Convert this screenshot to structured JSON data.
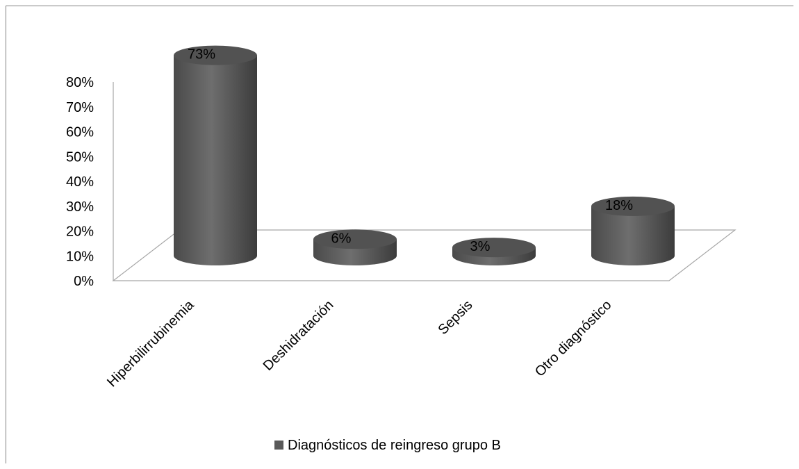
{
  "chart_data": {
    "type": "bar",
    "style": "3d-cylinder",
    "title": "",
    "xlabel": "",
    "ylabel": "",
    "categories": [
      "Hiperbilirrubinemia",
      "Deshidratación",
      "Sepsis",
      "Otro diagnóstico"
    ],
    "series": [
      {
        "name": "Diagnósticos de reingreso grupo B",
        "values": [
          73,
          6,
          3,
          18
        ],
        "data_labels": [
          "73%",
          "6%",
          "3%",
          "18%"
        ],
        "color": "#595959"
      }
    ],
    "yticks": [
      "0%",
      "10%",
      "20%",
      "30%",
      "40%",
      "50%",
      "60%",
      "70%",
      "80%"
    ],
    "ylim": [
      0,
      80
    ],
    "grid": false,
    "legend_position": "bottom"
  }
}
